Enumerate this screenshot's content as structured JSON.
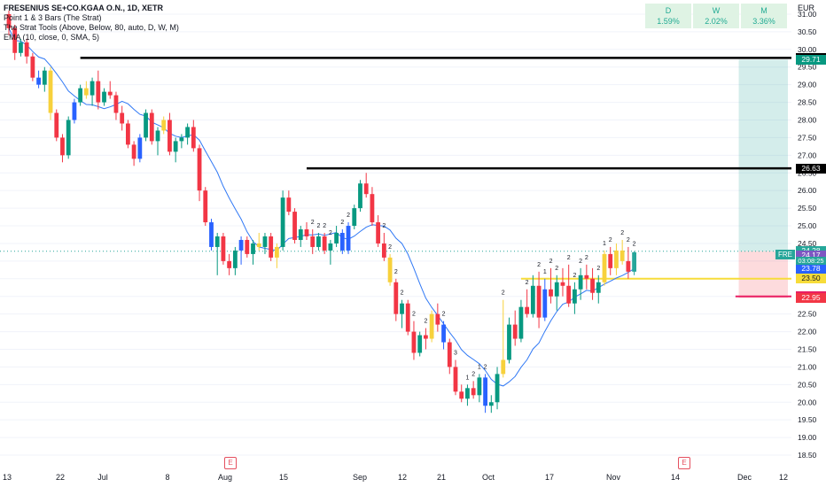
{
  "legend": {
    "title": "FRESENIUS SE+CO.KGAA O.N., 1D, XETR",
    "ind1": "Point 1 & 3 Bars (The Strat)",
    "ind2": "The Strat Tools (Above, Below, 80, auto, D, W, M)",
    "ind3": "EMA (10, close, 0, SMA, 5)"
  },
  "timeframes": [
    {
      "key": "D",
      "value": "1.59%"
    },
    {
      "key": "W",
      "value": "2.02%"
    },
    {
      "key": "M",
      "value": "3.36%"
    }
  ],
  "currency": "EUR",
  "ticker_tag": "FRE",
  "countdown": "03:08:25",
  "earnings_label": "E",
  "price_labels": [
    {
      "value": "29.76",
      "color": "#000000"
    },
    {
      "value": "29.71",
      "color": "#089981"
    },
    {
      "value": "26.63",
      "color": "#000000"
    },
    {
      "value": "24.28",
      "color": "#26a69a"
    },
    {
      "value": "24.17",
      "color": "#7e57c2"
    },
    {
      "value": "23.78",
      "color": "#2962ff"
    },
    {
      "value": "23.50",
      "color": "#f7dc3a"
    },
    {
      "value": "23.00",
      "color": "#e91e63"
    },
    {
      "value": "22.95",
      "color": "#f23645"
    }
  ],
  "chart_data": {
    "type": "candlestick",
    "y_ticks": [
      "18.50",
      "19.00",
      "19.50",
      "20.00",
      "20.50",
      "21.00",
      "21.50",
      "22.00",
      "22.50",
      "23.00",
      "23.50",
      "24.00",
      "24.50",
      "25.00",
      "25.50",
      "26.00",
      "26.50",
      "27.00",
      "27.50",
      "28.00",
      "28.50",
      "29.00",
      "29.50",
      "30.00",
      "30.50",
      "31.00"
    ],
    "x_ticks": [
      "13",
      "22",
      "Jul",
      "8",
      "Aug",
      "15",
      "Sep",
      "12",
      "21",
      "Oct",
      "17",
      "Nov",
      "14",
      "Dec",
      "12"
    ],
    "ylim": [
      18.3,
      31.3
    ],
    "ema_period": 10,
    "levels": [
      {
        "price": 29.76,
        "from": 12,
        "color": "#000000"
      },
      {
        "price": 26.63,
        "from": 50,
        "color": "#000000"
      },
      {
        "price": 23.5,
        "from": 86,
        "color": "#f7dc3a"
      },
      {
        "price": 23.0,
        "from": 122,
        "color": "#e91e63"
      }
    ],
    "position": {
      "entry": 24.28,
      "target": 29.71,
      "stop": 22.95,
      "from": 123,
      "to": 138
    },
    "strat_labels": [
      {
        "i": 51,
        "t": "2"
      },
      {
        "i": 52,
        "t": "2"
      },
      {
        "i": 53,
        "t": "2"
      },
      {
        "i": 54,
        "t": "2"
      },
      {
        "i": 56,
        "t": "2"
      },
      {
        "i": 57,
        "t": "2"
      },
      {
        "i": 63,
        "t": "2"
      },
      {
        "i": 64,
        "t": "2"
      },
      {
        "i": 65,
        "t": "2"
      },
      {
        "i": 66,
        "t": "2"
      },
      {
        "i": 68,
        "t": "2"
      },
      {
        "i": 70,
        "t": "2"
      },
      {
        "i": 73,
        "t": "2"
      },
      {
        "i": 75,
        "t": "3"
      },
      {
        "i": 77,
        "t": "1"
      },
      {
        "i": 78,
        "t": "2"
      },
      {
        "i": 79,
        "t": "1"
      },
      {
        "i": 80,
        "t": "2"
      },
      {
        "i": 83,
        "t": "2"
      },
      {
        "i": 87,
        "t": "2"
      },
      {
        "i": 89,
        "t": "2"
      },
      {
        "i": 90,
        "t": "1"
      },
      {
        "i": 91,
        "t": "2"
      },
      {
        "i": 92,
        "t": "2"
      },
      {
        "i": 94,
        "t": "2"
      },
      {
        "i": 95,
        "t": "2"
      },
      {
        "i": 96,
        "t": "2"
      },
      {
        "i": 97,
        "t": "2"
      },
      {
        "i": 99,
        "t": "2"
      },
      {
        "i": 100,
        "t": "1"
      },
      {
        "i": 101,
        "t": "2"
      },
      {
        "i": 103,
        "t": "2"
      },
      {
        "i": 104,
        "t": "2"
      },
      {
        "i": 105,
        "t": "2"
      },
      {
        "i": 106,
        "t": "2"
      },
      {
        "i": 107,
        "t": "2"
      },
      {
        "i": 108,
        "t": "2"
      },
      {
        "i": 109,
        "t": "2"
      },
      {
        "i": 110,
        "t": "2"
      },
      {
        "i": 111,
        "t": "2"
      },
      {
        "i": 113,
        "t": "2"
      },
      {
        "i": 114,
        "t": "2"
      },
      {
        "i": 115,
        "t": "2"
      },
      {
        "i": 116,
        "t": "2"
      },
      {
        "i": 117,
        "t": "2"
      },
      {
        "i": 118,
        "t": "2"
      },
      {
        "i": 119,
        "t": "2"
      },
      {
        "i": 120,
        "t": "2"
      }
    ],
    "candles": [
      [
        31.0,
        31.1,
        30.4,
        30.6
      ],
      [
        30.6,
        30.7,
        29.7,
        29.9
      ],
      [
        29.9,
        30.3,
        29.8,
        30.2
      ],
      [
        30.2,
        30.3,
        29.6,
        29.8
      ],
      [
        29.8,
        29.9,
        29.1,
        29.2
      ],
      [
        29.2,
        29.4,
        28.9,
        29.0
      ],
      [
        29.0,
        29.5,
        28.8,
        29.4
      ],
      [
        29.4,
        29.5,
        28.0,
        28.2
      ],
      [
        28.2,
        28.3,
        27.4,
        27.5
      ],
      [
        27.5,
        27.6,
        26.8,
        27.0
      ],
      [
        27.0,
        28.1,
        26.9,
        28.0
      ],
      [
        28.0,
        28.6,
        27.9,
        28.5
      ],
      [
        28.5,
        29.0,
        28.4,
        28.9
      ],
      [
        28.9,
        29.1,
        28.6,
        28.7
      ],
      [
        28.7,
        29.2,
        28.4,
        29.1
      ],
      [
        29.1,
        29.4,
        28.3,
        28.5
      ],
      [
        28.5,
        28.9,
        28.4,
        28.8
      ],
      [
        28.8,
        29.1,
        28.6,
        28.7
      ],
      [
        28.7,
        28.8,
        28.0,
        28.2
      ],
      [
        28.2,
        28.4,
        27.7,
        27.9
      ],
      [
        27.9,
        28.0,
        27.2,
        27.3
      ],
      [
        27.3,
        27.4,
        26.7,
        26.9
      ],
      [
        26.9,
        27.6,
        26.8,
        27.5
      ],
      [
        27.5,
        28.3,
        27.4,
        28.2
      ],
      [
        28.2,
        28.3,
        27.3,
        27.4
      ],
      [
        27.4,
        27.8,
        27.0,
        27.7
      ],
      [
        27.7,
        28.1,
        27.6,
        28.0
      ],
      [
        28.0,
        28.2,
        27.0,
        27.1
      ],
      [
        27.1,
        27.5,
        26.8,
        27.4
      ],
      [
        27.4,
        27.6,
        27.2,
        27.5
      ],
      [
        27.5,
        27.9,
        27.3,
        27.8
      ],
      [
        27.8,
        28.0,
        27.1,
        27.2
      ],
      [
        27.2,
        27.3,
        25.7,
        26.0
      ],
      [
        26.0,
        26.1,
        25.0,
        25.1
      ],
      [
        25.1,
        25.2,
        24.3,
        24.4
      ],
      [
        24.4,
        24.8,
        23.6,
        24.7
      ],
      [
        24.7,
        24.8,
        23.9,
        24.0
      ],
      [
        24.0,
        24.2,
        23.6,
        23.8
      ],
      [
        23.8,
        24.4,
        23.6,
        24.3
      ],
      [
        24.3,
        24.7,
        23.9,
        24.6
      ],
      [
        24.6,
        24.7,
        24.1,
        24.2
      ],
      [
        24.2,
        24.6,
        23.9,
        24.5
      ],
      [
        24.5,
        24.8,
        24.3,
        24.4
      ],
      [
        24.4,
        24.8,
        24.2,
        24.7
      ],
      [
        24.7,
        24.8,
        24.0,
        24.1
      ],
      [
        24.1,
        24.5,
        23.8,
        24.4
      ],
      [
        24.4,
        26.0,
        24.3,
        25.8
      ],
      [
        25.8,
        26.0,
        25.3,
        25.4
      ],
      [
        25.4,
        25.5,
        24.5,
        24.6
      ],
      [
        24.6,
        25.0,
        24.4,
        24.9
      ],
      [
        24.9,
        25.1,
        24.6,
        24.7
      ],
      [
        24.7,
        24.9,
        24.2,
        24.4
      ],
      [
        24.4,
        24.8,
        24.3,
        24.7
      ],
      [
        24.7,
        24.8,
        24.2,
        24.3
      ],
      [
        24.3,
        24.6,
        23.9,
        24.5
      ],
      [
        24.5,
        25.0,
        24.4,
        24.8
      ],
      [
        24.8,
        24.9,
        24.2,
        24.3
      ],
      [
        24.3,
        25.1,
        24.2,
        25.0
      ],
      [
        25.0,
        25.6,
        24.9,
        25.5
      ],
      [
        25.5,
        26.3,
        25.4,
        26.2
      ],
      [
        26.2,
        26.5,
        25.8,
        25.9
      ],
      [
        25.9,
        26.1,
        25.0,
        25.1
      ],
      [
        25.1,
        25.3,
        24.4,
        24.5
      ],
      [
        24.5,
        24.8,
        24.0,
        24.1
      ],
      [
        24.1,
        24.2,
        23.3,
        23.4
      ],
      [
        23.4,
        23.5,
        22.3,
        22.5
      ],
      [
        22.5,
        22.9,
        22.1,
        22.8
      ],
      [
        22.8,
        22.9,
        21.9,
        22.0
      ],
      [
        22.0,
        22.3,
        21.2,
        21.4
      ],
      [
        21.4,
        22.0,
        21.3,
        21.9
      ],
      [
        21.9,
        22.1,
        21.5,
        21.8
      ],
      [
        21.8,
        22.6,
        21.7,
        22.5
      ],
      [
        22.5,
        22.8,
        22.0,
        22.2
      ],
      [
        22.2,
        22.3,
        21.5,
        21.7
      ],
      [
        21.7,
        21.8,
        20.8,
        21.0
      ],
      [
        21.0,
        21.2,
        20.2,
        20.3
      ],
      [
        20.3,
        20.5,
        20.0,
        20.1
      ],
      [
        20.1,
        20.5,
        19.9,
        20.4
      ],
      [
        20.4,
        20.6,
        20.1,
        20.2
      ],
      [
        20.2,
        20.8,
        20.0,
        20.7
      ],
      [
        20.7,
        20.8,
        19.7,
        19.9
      ],
      [
        19.9,
        20.2,
        19.7,
        20.0
      ],
      [
        20.0,
        21.0,
        19.8,
        20.8
      ],
      [
        20.8,
        22.9,
        20.7,
        21.2
      ],
      [
        21.2,
        22.4,
        21.1,
        22.2
      ],
      [
        22.2,
        22.6,
        21.6,
        21.8
      ],
      [
        21.8,
        22.9,
        21.7,
        22.7
      ],
      [
        22.7,
        23.2,
        22.4,
        22.5
      ],
      [
        22.5,
        23.6,
        22.4,
        23.3
      ],
      [
        23.3,
        23.7,
        22.1,
        22.4
      ],
      [
        22.4,
        23.5,
        22.3,
        23.2
      ],
      [
        23.2,
        23.8,
        22.8,
        23.0
      ],
      [
        23.0,
        23.6,
        22.6,
        23.4
      ],
      [
        23.4,
        23.8,
        23.0,
        23.3
      ],
      [
        23.3,
        23.9,
        22.7,
        22.8
      ],
      [
        22.8,
        23.4,
        22.5,
        23.2
      ],
      [
        23.2,
        23.8,
        22.9,
        23.6
      ],
      [
        23.6,
        23.9,
        23.2,
        23.5
      ],
      [
        23.5,
        23.8,
        22.9,
        23.1
      ],
      [
        23.1,
        23.6,
        22.8,
        23.4
      ],
      [
        23.4,
        24.3,
        23.3,
        24.2
      ],
      [
        24.2,
        24.4,
        23.6,
        23.8
      ],
      [
        23.8,
        24.5,
        23.6,
        24.3
      ],
      [
        24.3,
        24.6,
        23.9,
        24.0
      ],
      [
        24.0,
        24.4,
        23.5,
        23.7
      ],
      [
        23.7,
        24.28,
        23.6,
        24.25
      ]
    ]
  }
}
